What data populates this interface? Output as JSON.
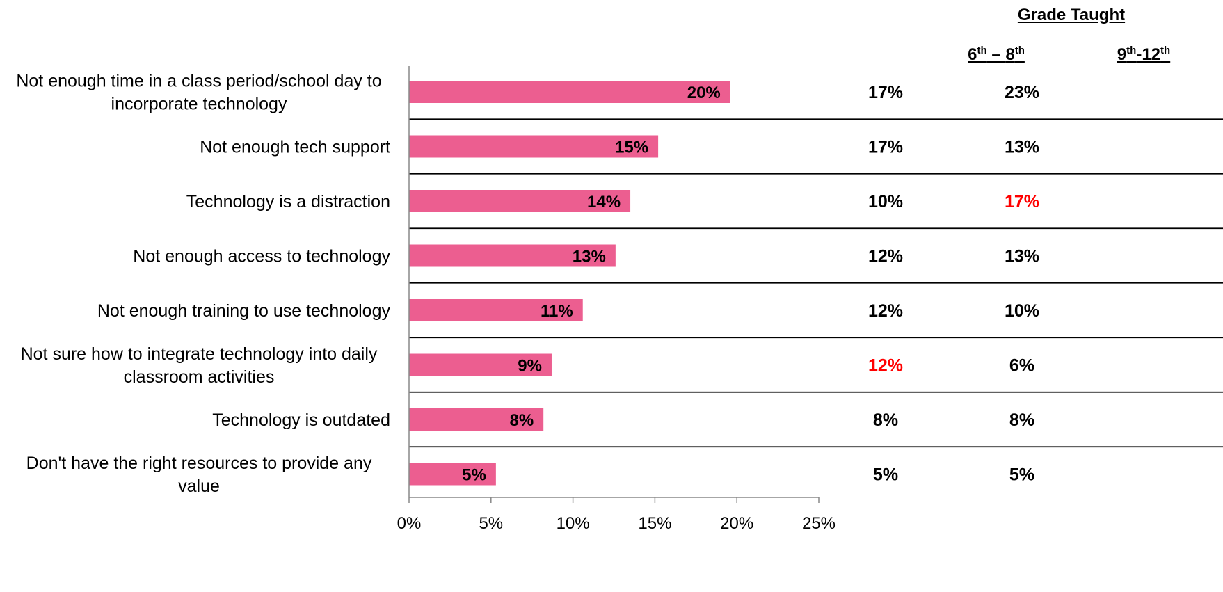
{
  "chart_data": {
    "type": "bar",
    "orientation": "horizontal",
    "categories": [
      "Not enough time in a class period/school day to incorporate technology",
      "Not enough tech support",
      "Technology is a distraction",
      "Not enough access to technology",
      "Not enough training to use technology",
      "Not sure how to integrate technology into daily classroom activities",
      "Technology is outdated",
      "Don't have the right resources to provide any value"
    ],
    "category_lines": [
      [
        "Not enough time in a class period/school day to",
        "incorporate technology"
      ],
      [
        "Not enough tech support"
      ],
      [
        "Technology is a distraction"
      ],
      [
        "Not enough access to technology"
      ],
      [
        "Not enough training to use technology"
      ],
      [
        "Not sure how to integrate technology into daily",
        "classroom activities"
      ],
      [
        "Technology is outdated"
      ],
      [
        "Don't have the right resources to provide any",
        "value"
      ]
    ],
    "values": [
      19.6,
      15.2,
      13.5,
      12.6,
      10.6,
      8.7,
      8.2,
      5.3
    ],
    "data_labels": [
      "20%",
      "15%",
      "14%",
      "13%",
      "11%",
      "9%",
      "8%",
      "5%"
    ],
    "xlim": [
      0,
      25
    ],
    "xticks": [
      0,
      5,
      10,
      15,
      20,
      25
    ],
    "xtick_labels": [
      "0%",
      "5%",
      "10%",
      "15%",
      "20%",
      "25%"
    ],
    "bar_color": "#EC5E90",
    "grid": false,
    "legend": "none"
  },
  "grade_table": {
    "title": "Grade Taught",
    "columns": [
      {
        "base1": "6",
        "sup1": "th",
        "mid": " – ",
        "base2": "8",
        "sup2": "th"
      },
      {
        "base1": "9",
        "sup1": "th",
        "mid": "-",
        "base2": "12",
        "sup2": "th"
      }
    ],
    "rows": [
      [
        {
          "text": "17%",
          "highlight": false
        },
        {
          "text": "23%",
          "highlight": false
        }
      ],
      [
        {
          "text": "17%",
          "highlight": false
        },
        {
          "text": "13%",
          "highlight": false
        }
      ],
      [
        {
          "text": "10%",
          "highlight": false
        },
        {
          "text": "17%",
          "highlight": true
        }
      ],
      [
        {
          "text": "12%",
          "highlight": false
        },
        {
          "text": "13%",
          "highlight": false
        }
      ],
      [
        {
          "text": "12%",
          "highlight": false
        },
        {
          "text": "10%",
          "highlight": false
        }
      ],
      [
        {
          "text": "12%",
          "highlight": true
        },
        {
          "text": "6%",
          "highlight": false
        }
      ],
      [
        {
          "text": "8%",
          "highlight": false
        },
        {
          "text": "8%",
          "highlight": false
        }
      ],
      [
        {
          "text": "5%",
          "highlight": false
        },
        {
          "text": "5%",
          "highlight": false
        }
      ]
    ],
    "highlight_color": "#FF0000",
    "text_color": "#000000"
  }
}
